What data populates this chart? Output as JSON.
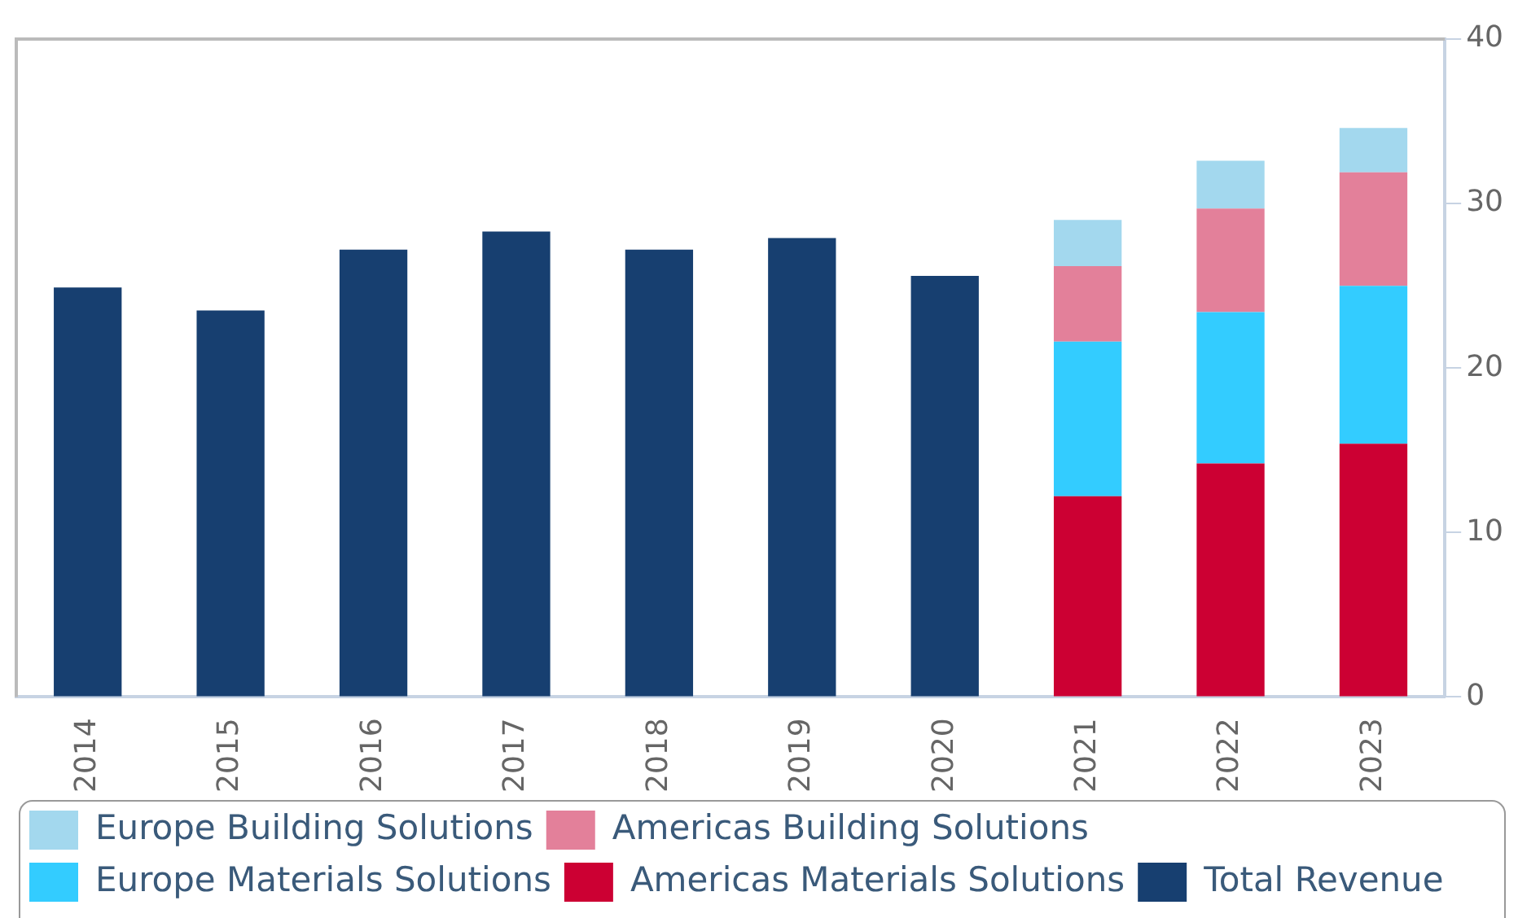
{
  "chart_data": {
    "type": "bar",
    "stacked": true,
    "categories": [
      "2014",
      "2015",
      "2016",
      "2017",
      "2018",
      "2019",
      "2020",
      "2021",
      "2022",
      "2023"
    ],
    "series": [
      {
        "name": "Total Revenue",
        "color": "#173f70",
        "values": [
          24.9,
          23.5,
          27.2,
          28.3,
          27.2,
          27.9,
          25.6,
          null,
          null,
          null
        ]
      },
      {
        "name": "Americas Materials Solutions",
        "color": "#cc0033",
        "values": [
          null,
          null,
          null,
          null,
          null,
          null,
          null,
          12.2,
          14.2,
          15.4
        ]
      },
      {
        "name": "Europe Materials Solutions",
        "color": "#33ccff",
        "values": [
          null,
          null,
          null,
          null,
          null,
          null,
          null,
          9.4,
          9.2,
          9.6
        ]
      },
      {
        "name": "Americas Building Solutions",
        "color": "#e3809a",
        "values": [
          null,
          null,
          null,
          null,
          null,
          null,
          null,
          4.6,
          6.3,
          6.9
        ]
      },
      {
        "name": "Europe Building Solutions",
        "color": "#a3d8ee",
        "values": [
          null,
          null,
          null,
          null,
          null,
          null,
          null,
          2.8,
          2.9,
          2.7
        ]
      }
    ],
    "ylim": [
      0,
      40
    ],
    "yticks": [
      0,
      10,
      20,
      30,
      40
    ],
    "grid": false,
    "legend": "bottom"
  }
}
